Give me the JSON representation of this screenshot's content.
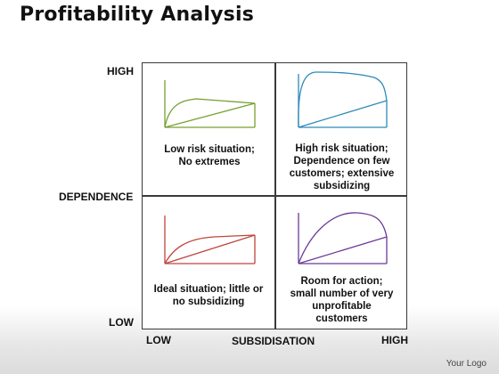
{
  "title": "Profitability Analysis",
  "axes": {
    "y_high": "HIGH",
    "y_label": "DEPENDENCE",
    "y_low": "LOW",
    "x_low": "LOW",
    "x_label": "SUBSIDISATION",
    "x_high": "HIGH"
  },
  "quadrants": {
    "top_left": {
      "line1": "Low risk situation;",
      "line2": "No extremes",
      "color": "#77a030"
    },
    "top_right": {
      "line1": "High risk situation;",
      "line2": "Dependence on few",
      "line3": "customers; extensive",
      "line4": "subsidizing",
      "color": "#2c8ab8"
    },
    "bottom_left": {
      "line1": "Ideal situation; little or",
      "line2": "no subsidizing",
      "color": "#c0443c"
    },
    "bottom_right": {
      "line1": "Room for action;",
      "line2": "small number of very",
      "line3": "unprofitable",
      "line4": "customers",
      "color": "#6b3a96"
    }
  },
  "logo": "Your Logo"
}
